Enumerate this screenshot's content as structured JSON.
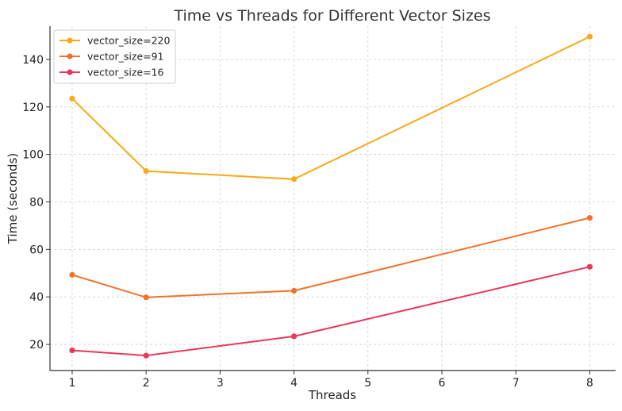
{
  "chart_data": {
    "type": "line",
    "title": "Time vs Threads for Different Vector Sizes",
    "xlabel": "Threads",
    "ylabel": "Time (seconds)",
    "x": [
      1,
      2,
      4,
      8
    ],
    "xticks": [
      1,
      2,
      3,
      4,
      5,
      6,
      7,
      8
    ],
    "yticks": [
      20,
      40,
      60,
      80,
      100,
      120,
      140
    ],
    "xlim": [
      0.7,
      8.35
    ],
    "ylim": [
      9,
      154
    ],
    "grid": true,
    "legend_position": "top-left",
    "series": [
      {
        "name": "vector_size=220",
        "color": "#f9a91a",
        "values": [
          123.5,
          93.0,
          89.6,
          149.6
        ]
      },
      {
        "name": "vector_size=91",
        "color": "#f2712b",
        "values": [
          49.3,
          39.8,
          42.6,
          73.3
        ]
      },
      {
        "name": "vector_size=16",
        "color": "#e8375a",
        "values": [
          17.5,
          15.3,
          23.4,
          52.7
        ]
      }
    ]
  }
}
